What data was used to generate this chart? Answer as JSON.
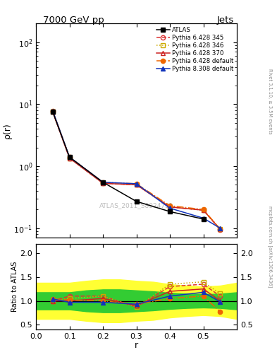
{
  "title_left": "7000 GeV pp",
  "title_right": "Jets",
  "right_label_top": "Rivet 3.1.10, ≥ 3.5M events",
  "right_label_bot": "mcplots.cern.ch [arXiv:1306.3436]",
  "watermark": "ATLAS_2011_S8924791",
  "xlabel": "r",
  "ylabel_top": "ρ(r)",
  "ylabel_bot": "Ratio to ATLAS",
  "atlas_main_x": [
    0.05,
    0.1,
    0.2,
    0.3,
    0.4,
    0.5
  ],
  "atlas_main_y": [
    7.5,
    1.4,
    0.55,
    0.27,
    0.185,
    0.14
  ],
  "series": [
    {
      "label": "Pythia 6.428 345",
      "color": "#dd3333",
      "linestyle": "dashed",
      "marker": "o",
      "markerfacecolor": "none",
      "main_x": [
        0.05,
        0.1,
        0.2,
        0.3,
        0.4,
        0.5,
        0.55
      ],
      "main_y": [
        7.5,
        1.35,
        0.53,
        0.5,
        0.22,
        0.195,
        0.095
      ],
      "ratio_x": [
        0.05,
        0.1,
        0.2,
        0.3,
        0.4,
        0.5,
        0.55
      ],
      "ratio_y": [
        1.0,
        1.1,
        1.1,
        0.87,
        1.3,
        1.35,
        1.1
      ]
    },
    {
      "label": "Pythia 6.428 346",
      "color": "#ccaa00",
      "linestyle": "dotted",
      "marker": "s",
      "markerfacecolor": "none",
      "main_x": [
        0.05,
        0.1,
        0.2,
        0.3,
        0.4,
        0.5,
        0.55
      ],
      "main_y": [
        7.5,
        1.35,
        0.53,
        0.5,
        0.22,
        0.195,
        0.096
      ],
      "ratio_x": [
        0.05,
        0.1,
        0.2,
        0.3,
        0.4,
        0.5,
        0.55
      ],
      "ratio_y": [
        1.0,
        1.05,
        1.1,
        0.87,
        1.35,
        1.4,
        1.15
      ]
    },
    {
      "label": "Pythia 6.428 370",
      "color": "#cc2222",
      "linestyle": "solid",
      "marker": "^",
      "markerfacecolor": "none",
      "main_x": [
        0.05,
        0.1,
        0.2,
        0.3,
        0.4,
        0.5,
        0.55
      ],
      "main_y": [
        7.5,
        1.35,
        0.53,
        0.5,
        0.22,
        0.195,
        0.096
      ],
      "ratio_x": [
        0.05,
        0.1,
        0.2,
        0.3,
        0.4,
        0.5,
        0.55
      ],
      "ratio_y": [
        1.0,
        1.0,
        1.05,
        0.9,
        1.2,
        1.25,
        1.0
      ]
    },
    {
      "label": "Pythia 6.428 default",
      "color": "#ee6600",
      "linestyle": "dashdot",
      "marker": "o",
      "markerfacecolor": "#ee6600",
      "main_x": [
        0.05,
        0.1,
        0.2,
        0.3,
        0.4,
        0.5,
        0.55
      ],
      "main_y": [
        7.8,
        1.4,
        0.55,
        0.52,
        0.23,
        0.2,
        0.097
      ],
      "ratio_x": [
        0.05,
        0.1,
        0.2,
        0.3,
        0.4,
        0.5,
        0.55
      ],
      "ratio_y": [
        1.04,
        1.02,
        1.0,
        0.93,
        1.05,
        1.1,
        0.77
      ]
    },
    {
      "label": "Pythia 8.308 default",
      "color": "#1133bb",
      "linestyle": "solid",
      "marker": "^",
      "markerfacecolor": "#1133bb",
      "main_x": [
        0.05,
        0.1,
        0.2,
        0.3,
        0.4,
        0.5,
        0.55
      ],
      "main_y": [
        7.8,
        1.4,
        0.55,
        0.52,
        0.21,
        0.145,
        0.1
      ],
      "ratio_x": [
        0.05,
        0.1,
        0.2,
        0.3,
        0.4,
        0.5,
        0.55
      ],
      "ratio_y": [
        1.04,
        0.97,
        0.97,
        0.93,
        1.1,
        1.18,
        0.98
      ]
    }
  ],
  "yellow_band_x": [
    0.0,
    0.05,
    0.1,
    0.15,
    0.2,
    0.25,
    0.3,
    0.35,
    0.4,
    0.45,
    0.5,
    0.55,
    0.6
  ],
  "yellow_band_ylo": [
    0.62,
    0.62,
    0.62,
    0.58,
    0.55,
    0.55,
    0.58,
    0.6,
    0.65,
    0.68,
    0.7,
    0.68,
    0.62
  ],
  "yellow_band_yhi": [
    1.38,
    1.38,
    1.38,
    1.42,
    1.45,
    1.45,
    1.42,
    1.4,
    1.35,
    1.32,
    1.3,
    1.32,
    1.38
  ],
  "green_band_x": [
    0.0,
    0.05,
    0.1,
    0.15,
    0.2,
    0.25,
    0.3,
    0.35,
    0.4,
    0.45,
    0.5,
    0.55,
    0.6
  ],
  "green_band_ylo": [
    0.82,
    0.82,
    0.82,
    0.78,
    0.76,
    0.76,
    0.78,
    0.8,
    0.83,
    0.85,
    0.86,
    0.85,
    0.82
  ],
  "green_band_yhi": [
    1.18,
    1.18,
    1.18,
    1.22,
    1.24,
    1.24,
    1.22,
    1.2,
    1.17,
    1.15,
    1.14,
    1.15,
    1.18
  ],
  "xlim": [
    0.0,
    0.6
  ],
  "xticks": [
    0.0,
    0.1,
    0.2,
    0.3,
    0.4,
    0.5
  ],
  "ylim_main": [
    0.07,
    200
  ],
  "ylim_ratio": [
    0.4,
    2.2
  ],
  "ratio_yticks": [
    0.5,
    1.0,
    1.5,
    2.0
  ]
}
